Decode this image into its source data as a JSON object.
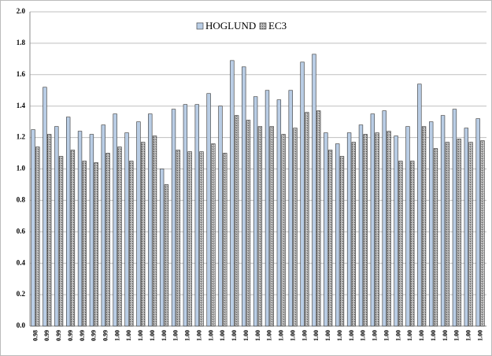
{
  "chart_data": {
    "type": "bar",
    "categories": [
      "0.98",
      "0.99",
      "0.99",
      "0.99",
      "0.99",
      "0.99",
      "0.99",
      "1.00",
      "1.00",
      "1.00",
      "1.00",
      "1.00",
      "1.00",
      "1.00",
      "1.00",
      "1.00",
      "1.00",
      "1.00",
      "1.00",
      "1.00",
      "1.00",
      "1.00",
      "1.00",
      "1.00",
      "1.00",
      "1.00",
      "1.00",
      "1.00",
      "1.00",
      "1.00",
      "1.00",
      "1.00",
      "1.00",
      "1.00",
      "1.00",
      "1.00",
      "1.00",
      "1.00",
      "1.00"
    ],
    "series": [
      {
        "name": "HOGLUND",
        "color": "#b9cde5",
        "values": [
          1.25,
          1.52,
          1.27,
          1.33,
          1.24,
          1.22,
          1.28,
          1.35,
          1.23,
          1.3,
          1.35,
          1.0,
          1.38,
          1.41,
          1.41,
          1.48,
          1.4,
          1.69,
          1.65,
          1.46,
          1.5,
          1.44,
          1.5,
          1.68,
          1.73,
          1.23,
          1.16,
          1.23,
          1.28,
          1.35,
          1.37,
          1.21,
          1.27,
          1.54,
          1.3,
          1.34,
          1.38,
          1.26,
          1.32
        ]
      },
      {
        "name": "EC3",
        "color": "#a0a0a0",
        "values": [
          1.14,
          1.22,
          1.08,
          1.12,
          1.05,
          1.04,
          1.1,
          1.14,
          1.05,
          1.17,
          1.21,
          0.9,
          1.12,
          1.11,
          1.11,
          1.16,
          1.1,
          1.34,
          1.31,
          1.27,
          1.27,
          1.22,
          1.26,
          1.36,
          1.37,
          1.12,
          1.08,
          1.17,
          1.22,
          1.23,
          1.24,
          1.05,
          1.05,
          1.27,
          1.13,
          1.17,
          1.19,
          1.17,
          1.18
        ]
      }
    ],
    "ylim": [
      0,
      2
    ],
    "yticks": [
      {
        "value": 0,
        "label": "0.0"
      },
      0.2,
      0.4,
      0.6,
      0.8,
      {
        "value": 1,
        "label": "1.0"
      },
      1.2,
      1.4,
      1.6,
      1.8,
      {
        "value": 2,
        "label": "2.0"
      }
    ],
    "grid": true,
    "legend": "top"
  }
}
